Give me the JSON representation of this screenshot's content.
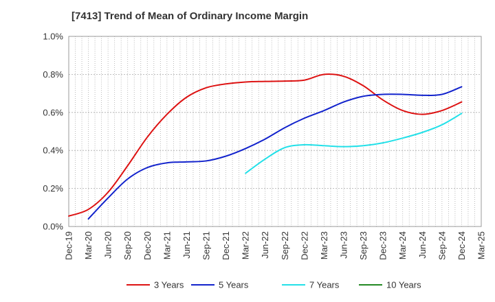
{
  "chart_data": {
    "type": "line",
    "title": "[7413]  Trend of Mean of Ordinary Income Margin",
    "xlabel": "",
    "ylabel": "",
    "x_tick_labels": [
      "Dec-19",
      "Mar-20",
      "Jun-20",
      "Sep-20",
      "Dec-20",
      "Mar-21",
      "Jun-21",
      "Sep-21",
      "Dec-21",
      "Mar-22",
      "Jun-22",
      "Sep-22",
      "Dec-22",
      "Mar-23",
      "Jun-23",
      "Sep-23",
      "Dec-23",
      "Mar-24",
      "Jun-24",
      "Sep-24",
      "Dec-24",
      "Mar-25"
    ],
    "y_tick_labels": [
      "0.0%",
      "0.2%",
      "0.4%",
      "0.6%",
      "0.8%",
      "1.0%"
    ],
    "ylim": [
      0,
      1.0
    ],
    "grid": true,
    "legend_position": "bottom",
    "series": [
      {
        "name": "3 Years",
        "color": "#dd1111",
        "x": [
          "Dec-19",
          "Mar-20",
          "Jun-20",
          "Sep-20",
          "Dec-20",
          "Mar-21",
          "Jun-21",
          "Sep-21",
          "Dec-21",
          "Mar-22",
          "Jun-22",
          "Sep-22",
          "Dec-22",
          "Mar-23",
          "Jun-23",
          "Sep-23",
          "Dec-23",
          "Mar-24",
          "Jun-24",
          "Sep-24",
          "Dec-24"
        ],
        "values": [
          0.055,
          0.09,
          0.18,
          0.32,
          0.47,
          0.59,
          0.68,
          0.73,
          0.75,
          0.76,
          0.763,
          0.765,
          0.77,
          0.8,
          0.79,
          0.74,
          0.665,
          0.61,
          0.59,
          0.61,
          0.655
        ]
      },
      {
        "name": "5 Years",
        "color": "#1122cc",
        "x": [
          "Mar-20",
          "Jun-20",
          "Sep-20",
          "Dec-20",
          "Mar-21",
          "Jun-21",
          "Sep-21",
          "Dec-21",
          "Mar-22",
          "Jun-22",
          "Sep-22",
          "Dec-22",
          "Mar-23",
          "Jun-23",
          "Sep-23",
          "Dec-23",
          "Mar-24",
          "Jun-24",
          "Sep-24",
          "Dec-24"
        ],
        "values": [
          0.04,
          0.15,
          0.25,
          0.31,
          0.335,
          0.34,
          0.345,
          0.37,
          0.41,
          0.46,
          0.52,
          0.57,
          0.61,
          0.655,
          0.685,
          0.695,
          0.695,
          0.69,
          0.695,
          0.735
        ]
      },
      {
        "name": "7 Years",
        "color": "#22e0e8",
        "x": [
          "Mar-22",
          "Jun-22",
          "Sep-22",
          "Dec-22",
          "Mar-23",
          "Jun-23",
          "Sep-23",
          "Dec-23",
          "Mar-24",
          "Jun-24",
          "Sep-24",
          "Dec-24"
        ],
        "values": [
          0.28,
          0.355,
          0.415,
          0.43,
          0.425,
          0.42,
          0.425,
          0.44,
          0.465,
          0.495,
          0.535,
          0.595
        ]
      },
      {
        "name": "10 Years",
        "color": "#228822",
        "x": [],
        "values": []
      }
    ]
  }
}
